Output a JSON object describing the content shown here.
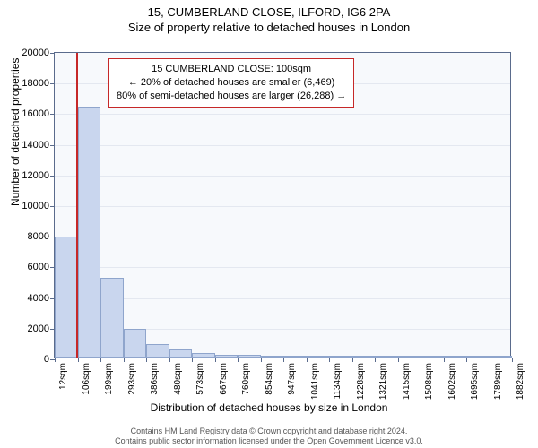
{
  "title": "15, CUMBERLAND CLOSE, ILFORD, IG6 2PA",
  "subtitle": "Size of property relative to detached houses in London",
  "chart": {
    "type": "histogram",
    "background_color": "#f7f9fc",
    "grid_color": "#e4e8f0",
    "axis_color": "#5a6b8c",
    "bar_fill": "#c9d6ee",
    "bar_stroke": "#8fa5cc",
    "marker_color": "#c62828",
    "ylabel": "Number of detached properties",
    "xlabel": "Distribution of detached houses by size in London",
    "ylim": [
      0,
      20000
    ],
    "ytick_step": 2000,
    "label_fontsize": 12,
    "tick_fontsize": 11,
    "xtick_labels": [
      "12sqm",
      "106sqm",
      "199sqm",
      "293sqm",
      "386sqm",
      "480sqm",
      "573sqm",
      "667sqm",
      "760sqm",
      "854sqm",
      "947sqm",
      "1041sqm",
      "1134sqm",
      "1228sqm",
      "1321sqm",
      "1415sqm",
      "1508sqm",
      "1602sqm",
      "1695sqm",
      "1789sqm",
      "1882sqm"
    ],
    "bars": [
      {
        "x": 12,
        "count": 7900
      },
      {
        "x": 106,
        "count": 16400
      },
      {
        "x": 199,
        "count": 5200
      },
      {
        "x": 293,
        "count": 1900
      },
      {
        "x": 386,
        "count": 900
      },
      {
        "x": 480,
        "count": 500
      },
      {
        "x": 573,
        "count": 300
      },
      {
        "x": 667,
        "count": 200
      },
      {
        "x": 760,
        "count": 150
      },
      {
        "x": 854,
        "count": 100
      },
      {
        "x": 947,
        "count": 60
      },
      {
        "x": 1041,
        "count": 40
      },
      {
        "x": 1134,
        "count": 30
      },
      {
        "x": 1228,
        "count": 20
      },
      {
        "x": 1321,
        "count": 15
      },
      {
        "x": 1415,
        "count": 10
      },
      {
        "x": 1508,
        "count": 10
      },
      {
        "x": 1602,
        "count": 8
      },
      {
        "x": 1695,
        "count": 5
      },
      {
        "x": 1789,
        "count": 5
      }
    ],
    "x_domain": [
      12,
      1882
    ],
    "bar_width_units": 93.5,
    "marker_x": 100,
    "info_box": {
      "line1": "15 CUMBERLAND CLOSE: 100sqm",
      "line2": "← 20% of detached houses are smaller (6,469)",
      "line3": "80% of semi-detached houses are larger (26,288) →",
      "border_color": "#c62828",
      "fontsize": 11
    }
  },
  "footer": {
    "line1": "Contains HM Land Registry data © Crown copyright and database right 2024.",
    "line2": "Contains public sector information licensed under the Open Government Licence v3.0."
  }
}
